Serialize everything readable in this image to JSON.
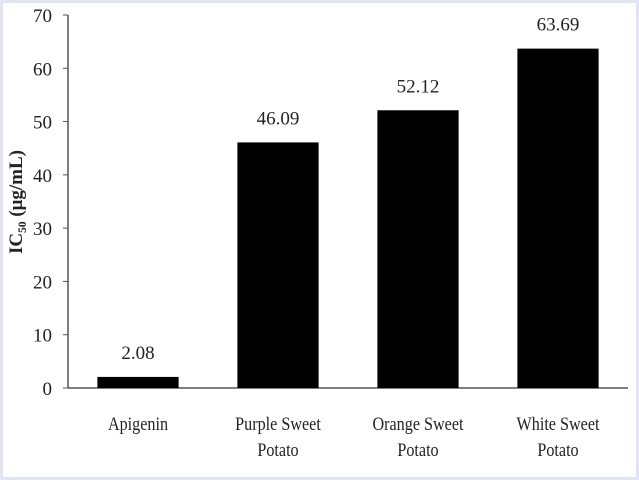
{
  "chart_data": {
    "type": "bar",
    "y_label": "IC₅₀ (μg/mL)",
    "categories": [
      "Apigenin",
      "Purple Sweet Potato",
      "Orange Sweet Potato",
      "White Sweet Potato"
    ],
    "values": [
      2.08,
      46.09,
      52.12,
      63.69
    ],
    "color": "#000000",
    "ylim": [
      0,
      70
    ],
    "yticks": [
      0,
      10,
      20,
      30,
      40,
      50,
      60,
      70
    ],
    "grid": false
  }
}
